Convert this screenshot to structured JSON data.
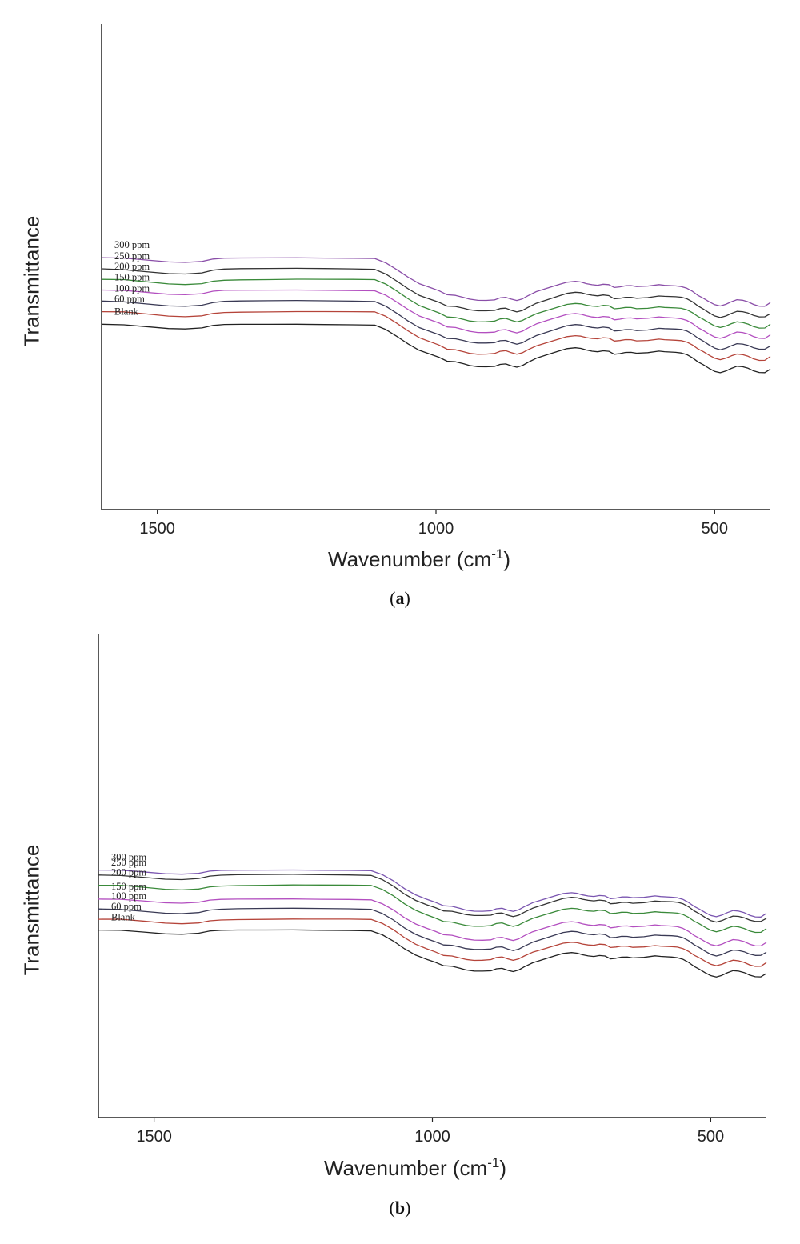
{
  "chart_data": [
    {
      "type": "line",
      "panel": "a",
      "caption": "a",
      "xlabel": "Wavenumber (cm",
      "xlabel_sup": "-1",
      "xlabel_close": ")",
      "ylabel": "Transmittance",
      "xlim": [
        1600,
        400
      ],
      "x_ticks": [
        {
          "value": 1500,
          "label": "1500"
        },
        {
          "value": 1000,
          "label": "1000"
        },
        {
          "value": 500,
          "label": "500"
        }
      ],
      "y_axis_ticks": false,
      "series": [
        {
          "name": "300 ppm",
          "color": "#8a4ea8",
          "offset": 6.6
        },
        {
          "name": "250 ppm",
          "color": "#333333",
          "offset": 5.5
        },
        {
          "name": "200 ppm",
          "color": "#3a8a3a",
          "offset": 4.45
        },
        {
          "name": "150 ppm",
          "color": "#b34fc0",
          "offset": 3.4
        },
        {
          "name": "100 ppm",
          "color": "#3a3a55",
          "offset": 2.3
        },
        {
          "name": "60 ppm",
          "color": "#b5443a",
          "offset": 1.25
        },
        {
          "name": "Blank",
          "color": "#222222",
          "offset": 0
        }
      ],
      "profile": {
        "x": [
          1600,
          1560,
          1520,
          1480,
          1450,
          1420,
          1400,
          1380,
          1350,
          1300,
          1250,
          1200,
          1150,
          1110,
          1090,
          1070,
          1050,
          1030,
          1010,
          995,
          980,
          965,
          950,
          940,
          925,
          910,
          895,
          885,
          875,
          865,
          855,
          845,
          835,
          820,
          800,
          780,
          765,
          750,
          740,
          730,
          720,
          710,
          700,
          690,
          680,
          670,
          660,
          650,
          640,
          620,
          600,
          590,
          570,
          560,
          550,
          540,
          530,
          520,
          510,
          500,
          490,
          480,
          470,
          460,
          450,
          440,
          430,
          420,
          410,
          400
        ],
        "y": [
          4.5,
          4.45,
          4.25,
          4.05,
          4.0,
          4.1,
          4.35,
          4.45,
          4.48,
          4.5,
          4.52,
          4.5,
          4.48,
          4.45,
          4.0,
          3.3,
          2.55,
          1.9,
          1.5,
          1.2,
          0.8,
          0.75,
          0.55,
          0.4,
          0.3,
          0.3,
          0.35,
          0.55,
          0.6,
          0.4,
          0.25,
          0.4,
          0.7,
          1.1,
          1.45,
          1.8,
          2.05,
          2.15,
          2.1,
          1.95,
          1.85,
          1.8,
          1.9,
          1.85,
          1.55,
          1.6,
          1.7,
          1.7,
          1.6,
          1.65,
          1.8,
          1.75,
          1.7,
          1.65,
          1.5,
          1.2,
          0.8,
          0.5,
          0.15,
          -0.15,
          -0.3,
          -0.15,
          0.1,
          0.3,
          0.25,
          0.1,
          -0.15,
          -0.3,
          -0.3,
          0.05
        ]
      }
    },
    {
      "type": "line",
      "panel": "b",
      "caption": "b",
      "xlabel": "Wavenumber (cm",
      "xlabel_sup": "-1",
      "xlabel_close": ")",
      "ylabel": "Transmittance",
      "xlim": [
        1600,
        400
      ],
      "x_ticks": [
        {
          "value": 1500,
          "label": "1500"
        },
        {
          "value": 1000,
          "label": "1000"
        },
        {
          "value": 500,
          "label": "500"
        }
      ],
      "y_axis_ticks": false,
      "series": [
        {
          "name": "300 ppm",
          "color": "#7a55b0",
          "offset": 6.1
        },
        {
          "name": "250 ppm",
          "color": "#333333",
          "offset": 5.6
        },
        {
          "name": "200 ppm",
          "color": "#3a8a3a",
          "offset": 4.55
        },
        {
          "name": "150 ppm",
          "color": "#b34fc0",
          "offset": 3.15
        },
        {
          "name": "100 ppm",
          "color": "#3a3a55",
          "offset": 2.15
        },
        {
          "name": "60 ppm",
          "color": "#b5443a",
          "offset": 1.1
        },
        {
          "name": "Blank",
          "color": "#222222",
          "offset": 0
        }
      ],
      "profile": {
        "x": [
          1600,
          1560,
          1520,
          1480,
          1450,
          1420,
          1400,
          1380,
          1350,
          1300,
          1250,
          1200,
          1150,
          1110,
          1090,
          1070,
          1050,
          1030,
          1010,
          995,
          980,
          965,
          950,
          940,
          925,
          910,
          895,
          885,
          875,
          865,
          855,
          845,
          835,
          820,
          800,
          780,
          765,
          750,
          740,
          730,
          720,
          710,
          700,
          690,
          680,
          670,
          660,
          650,
          640,
          620,
          600,
          590,
          570,
          560,
          550,
          540,
          530,
          520,
          510,
          500,
          490,
          480,
          470,
          460,
          450,
          440,
          430,
          420,
          410,
          400
        ],
        "y": [
          4.5,
          4.48,
          4.3,
          4.1,
          4.05,
          4.15,
          4.38,
          4.46,
          4.5,
          4.52,
          4.54,
          4.52,
          4.5,
          4.46,
          4.05,
          3.4,
          2.6,
          1.95,
          1.5,
          1.2,
          0.85,
          0.8,
          0.6,
          0.45,
          0.35,
          0.35,
          0.4,
          0.6,
          0.65,
          0.45,
          0.3,
          0.45,
          0.75,
          1.15,
          1.5,
          1.85,
          2.1,
          2.2,
          2.15,
          2.0,
          1.9,
          1.85,
          1.95,
          1.9,
          1.6,
          1.65,
          1.75,
          1.75,
          1.65,
          1.7,
          1.85,
          1.8,
          1.75,
          1.7,
          1.55,
          1.25,
          0.85,
          0.55,
          0.2,
          -0.1,
          -0.25,
          -0.1,
          0.15,
          0.35,
          0.3,
          0.15,
          -0.1,
          -0.25,
          -0.25,
          0.1
        ]
      }
    }
  ]
}
